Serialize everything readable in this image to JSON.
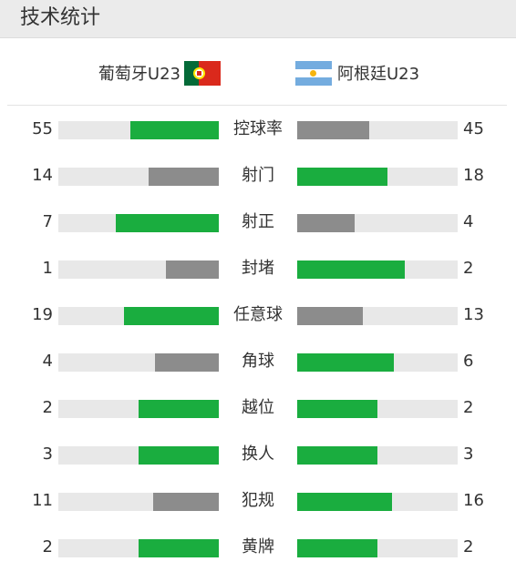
{
  "header": {
    "title": "技术统计"
  },
  "teams": {
    "home": {
      "name": "葡萄牙U23",
      "flag_icon": "portugal-flag-icon"
    },
    "away": {
      "name": "阿根廷U23",
      "flag_icon": "argentina-flag-icon"
    }
  },
  "colors": {
    "leading": "#1aad3f",
    "trailing": "#8c8c8c",
    "track": "#e8e8e8"
  },
  "stats": [
    {
      "label": "控球率",
      "home": "55",
      "away": "45",
      "home_fraction": 0.55,
      "away_fraction": 0.45,
      "home_leading": true,
      "away_leading": false
    },
    {
      "label": "射门",
      "home": "14",
      "away": "18",
      "home_fraction": 0.44,
      "away_fraction": 0.56,
      "home_leading": false,
      "away_leading": true
    },
    {
      "label": "射正",
      "home": "7",
      "away": "4",
      "home_fraction": 0.64,
      "away_fraction": 0.36,
      "home_leading": true,
      "away_leading": false
    },
    {
      "label": "封堵",
      "home": "1",
      "away": "2",
      "home_fraction": 0.33,
      "away_fraction": 0.67,
      "home_leading": false,
      "away_leading": true
    },
    {
      "label": "任意球",
      "home": "19",
      "away": "13",
      "home_fraction": 0.59,
      "away_fraction": 0.41,
      "home_leading": true,
      "away_leading": false
    },
    {
      "label": "角球",
      "home": "4",
      "away": "6",
      "home_fraction": 0.4,
      "away_fraction": 0.6,
      "home_leading": false,
      "away_leading": true
    },
    {
      "label": "越位",
      "home": "2",
      "away": "2",
      "home_fraction": 0.5,
      "away_fraction": 0.5,
      "home_leading": true,
      "away_leading": true
    },
    {
      "label": "换人",
      "home": "3",
      "away": "3",
      "home_fraction": 0.5,
      "away_fraction": 0.5,
      "home_leading": true,
      "away_leading": true
    },
    {
      "label": "犯规",
      "home": "11",
      "away": "16",
      "home_fraction": 0.41,
      "away_fraction": 0.59,
      "home_leading": false,
      "away_leading": true
    },
    {
      "label": "黄牌",
      "home": "2",
      "away": "2",
      "home_fraction": 0.5,
      "away_fraction": 0.5,
      "home_leading": true,
      "away_leading": true
    }
  ]
}
